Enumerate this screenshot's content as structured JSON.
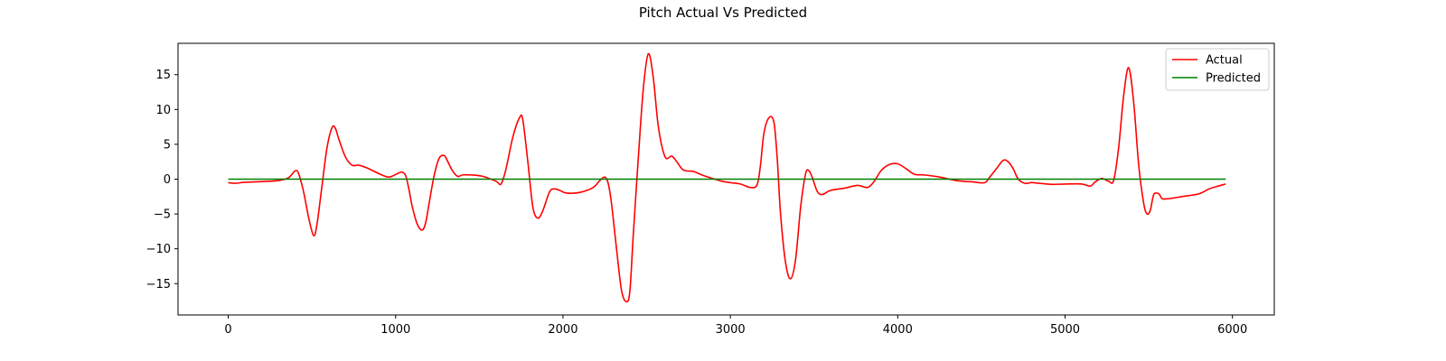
{
  "chart_data": {
    "type": "line",
    "title": "Pitch Actual Vs Predicted",
    "xlabel": "",
    "ylabel": "",
    "xlim": [
      -300,
      6250
    ],
    "ylim": [
      -19.5,
      19.5
    ],
    "xticks": [
      0,
      1000,
      2000,
      3000,
      4000,
      5000,
      6000
    ],
    "yticks": [
      -15,
      -10,
      -5,
      0,
      5,
      10,
      15
    ],
    "grid": false,
    "legend": {
      "placement": "top-right",
      "entries": [
        "Actual",
        "Predicted"
      ]
    },
    "series": [
      {
        "name": "Actual",
        "color": "#ff0000",
        "x": [
          0,
          40,
          100,
          200,
          300,
          360,
          400,
          420,
          450,
          480,
          510,
          530,
          560,
          590,
          620,
          640,
          660,
          700,
          740,
          780,
          830,
          900,
          960,
          1020,
          1040,
          1060,
          1080,
          1100,
          1130,
          1160,
          1180,
          1200,
          1230,
          1260,
          1290,
          1310,
          1340,
          1370,
          1400,
          1450,
          1520,
          1600,
          1630,
          1660,
          1700,
          1740,
          1760,
          1790,
          1820,
          1850,
          1880,
          1920,
          1950,
          1980,
          2020,
          2100,
          2180,
          2220,
          2250,
          2270,
          2290,
          2320,
          2350,
          2380,
          2400,
          2420,
          2450,
          2480,
          2510,
          2540,
          2570,
          2610,
          2650,
          2680,
          2720,
          2780,
          2830,
          2880,
          2950,
          3000,
          3060,
          3120,
          3160,
          3180,
          3200,
          3230,
          3260,
          3280,
          3300,
          3330,
          3360,
          3390,
          3420,
          3450,
          3470,
          3490,
          3520,
          3550,
          3600,
          3680,
          3760,
          3820,
          3860,
          3900,
          3950,
          4000,
          4050,
          4100,
          4160,
          4250,
          4350,
          4450,
          4520,
          4550,
          4590,
          4630,
          4660,
          4690,
          4720,
          4760,
          4800,
          4850,
          4920,
          5000,
          5100,
          5150,
          5180,
          5220,
          5260,
          5290,
          5320,
          5350,
          5380,
          5410,
          5440,
          5470,
          5490,
          5510,
          5530,
          5560,
          5580,
          5620,
          5700,
          5800,
          5860,
          5900,
          5960
        ],
        "y": [
          -0.5,
          -0.6,
          -0.45,
          -0.35,
          -0.2,
          0.2,
          1.2,
          0.8,
          -1.8,
          -5.5,
          -8.1,
          -6.5,
          -1.0,
          4.5,
          7.4,
          7.3,
          5.8,
          3.2,
          2.0,
          2.0,
          1.6,
          0.8,
          0.3,
          0.9,
          1.0,
          0.5,
          -1.5,
          -4.0,
          -6.5,
          -7.3,
          -6.2,
          -3.5,
          0.5,
          3.0,
          3.4,
          2.6,
          1.2,
          0.4,
          0.6,
          0.6,
          0.4,
          -0.3,
          -0.7,
          1.5,
          6.0,
          8.8,
          8.5,
          2.5,
          -4.0,
          -5.6,
          -4.5,
          -1.8,
          -1.4,
          -1.6,
          -2.0,
          -1.9,
          -1.2,
          -0.2,
          0.3,
          -0.6,
          -3.5,
          -10.0,
          -16.0,
          -17.6,
          -16.0,
          -8.0,
          3.0,
          13.0,
          18.0,
          14.5,
          7.5,
          3.2,
          3.3,
          2.5,
          1.3,
          1.1,
          0.6,
          0.2,
          -0.3,
          -0.5,
          -0.7,
          -1.2,
          -0.8,
          2.0,
          6.5,
          8.8,
          8.2,
          3.0,
          -5.0,
          -12.0,
          -14.3,
          -11.5,
          -4.0,
          0.8,
          1.2,
          0.2,
          -1.8,
          -2.2,
          -1.6,
          -1.3,
          -0.9,
          -1.2,
          -0.3,
          1.2,
          2.1,
          2.2,
          1.5,
          0.7,
          0.6,
          0.3,
          -0.2,
          -0.4,
          -0.5,
          0.3,
          1.5,
          2.7,
          2.5,
          1.5,
          0.0,
          -0.6,
          -0.5,
          -0.6,
          -0.75,
          -0.7,
          -0.7,
          -1.0,
          -0.4,
          0.1,
          -0.3,
          -0.2,
          4.5,
          12.0,
          16.0,
          11.0,
          2.0,
          -3.5,
          -5.0,
          -4.4,
          -2.2,
          -2.1,
          -2.8,
          -2.8,
          -2.5,
          -2.1,
          -1.4,
          -1.1,
          -0.7
        ]
      },
      {
        "name": "Predicted",
        "color": "#008000",
        "x": [
          0,
          5960
        ],
        "y": [
          0,
          0
        ]
      }
    ]
  }
}
